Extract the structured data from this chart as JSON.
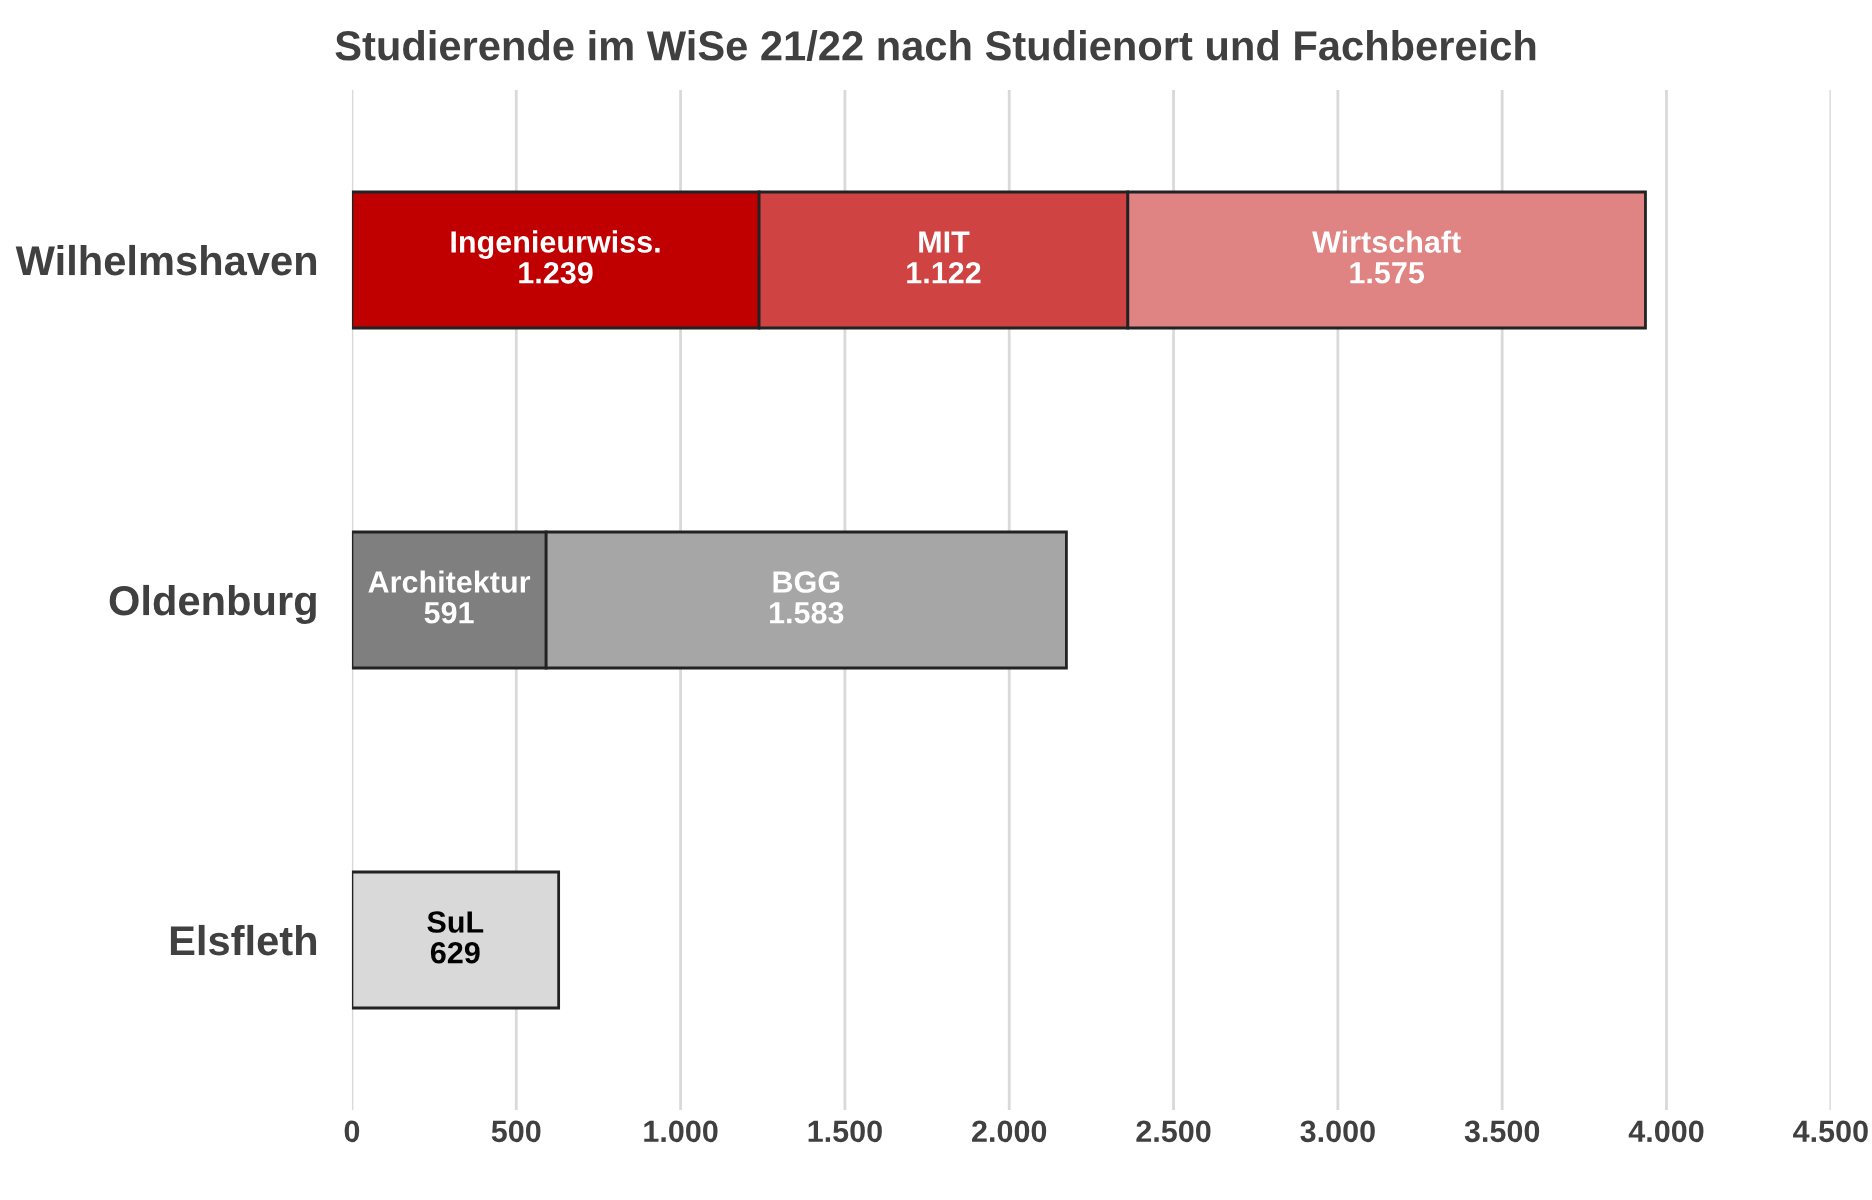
{
  "chart_data": {
    "type": "bar",
    "title": "Studierende im WiSe 21/22 nach Studienort und Fachbereich",
    "orientation": "horizontal",
    "stacked": true,
    "categories": [
      "Wilhelmshaven",
      "Oldenburg",
      "Elsfleth"
    ],
    "series": [
      {
        "colors": [
          "#c00000",
          "#7f7f7f",
          "#d9d9d9"
        ],
        "values": [
          1239,
          591,
          629
        ],
        "value_labels": [
          "Ingenieurwiss.\n1.239",
          "Architektur\n591",
          "SuL\n629"
        ]
      },
      {
        "colors": [
          "#d04343",
          "#a6a6a6",
          null
        ],
        "values": [
          1122,
          1583,
          null
        ],
        "value_labels": [
          "MIT\n1.122",
          "BGG\n1.583",
          null
        ]
      },
      {
        "colors": [
          "#e08383",
          null,
          null
        ],
        "values": [
          1575,
          null,
          null
        ],
        "value_labels": [
          "Wirtschaft\n1.575",
          null,
          null
        ]
      }
    ],
    "xlim": [
      0,
      4500
    ],
    "xticks": [
      {
        "value": 0,
        "label": "0"
      },
      {
        "value": 500,
        "label": "500"
      },
      {
        "value": 1000,
        "label": "1.000"
      },
      {
        "value": 1500,
        "label": "1.500"
      },
      {
        "value": 2000,
        "label": "2.000"
      },
      {
        "value": 2500,
        "label": "2.500"
      },
      {
        "value": 3000,
        "label": "3.000"
      },
      {
        "value": 3500,
        "label": "3.500"
      },
      {
        "value": 4000,
        "label": "4.000"
      },
      {
        "value": 4500,
        "label": "4.500"
      }
    ],
    "grid": "x",
    "legend": false
  }
}
